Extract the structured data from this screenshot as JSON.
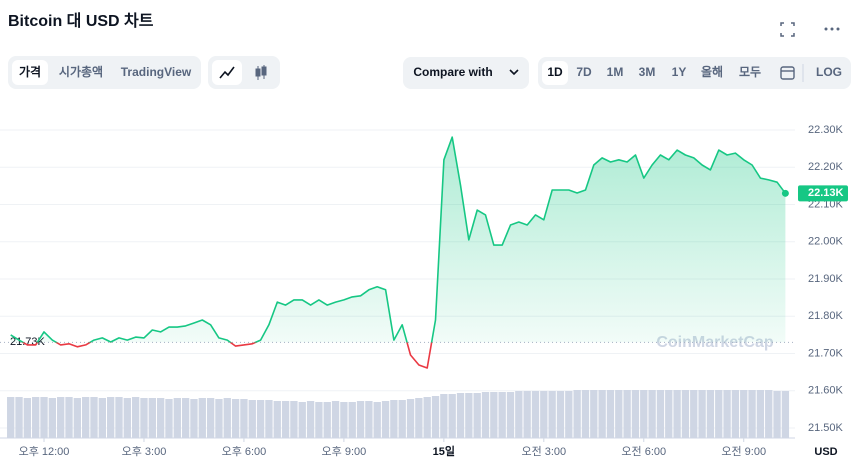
{
  "header": {
    "title": "Bitcoin 대 USD 차트",
    "tabs": [
      "가격",
      "시가총액",
      "TradingView"
    ],
    "compare": "Compare with",
    "ranges": [
      "1D",
      "7D",
      "1M",
      "3M",
      "1Y",
      "올해",
      "모두"
    ],
    "log": "LOG"
  },
  "chart_data": {
    "type": "line",
    "watermark": "CoinMarketCap",
    "y_unit": "USD",
    "categories": [
      null,
      null,
      null,
      null,
      "오후 12:00",
      null,
      null,
      null,
      null,
      null,
      null,
      null,
      null,
      null,
      null,
      null,
      "오후 3:00",
      null,
      null,
      null,
      null,
      null,
      null,
      null,
      null,
      null,
      null,
      null,
      "오후 6:00",
      null,
      null,
      null,
      null,
      null,
      null,
      null,
      null,
      null,
      null,
      null,
      "오후 9:00",
      null,
      null,
      null,
      null,
      null,
      null,
      null,
      null,
      null,
      null,
      null,
      "15일",
      null,
      null,
      null,
      null,
      null,
      null,
      null,
      null,
      null,
      null,
      null,
      "오전 3:00",
      null,
      null,
      null,
      null,
      null,
      null,
      null,
      null,
      null,
      null,
      null,
      "오전 6:00",
      null,
      null,
      null,
      null,
      null,
      null,
      null,
      null,
      null,
      null,
      null,
      "오전 9:00",
      null,
      null,
      null,
      null,
      null
    ],
    "series": [
      {
        "name": "Price",
        "color": "#16c784",
        "below_color": "#ea3943",
        "values": [
          21750,
          21736,
          21723,
          21723,
          21758,
          21736,
          21723,
          21726,
          21718,
          21723,
          21736,
          21742,
          21731,
          21742,
          21736,
          21744,
          21742,
          21763,
          21758,
          21771,
          21771,
          21774,
          21782,
          21790,
          21777,
          21742,
          21736,
          21720,
          21723,
          21726,
          21736,
          21777,
          21838,
          21830,
          21844,
          21844,
          21830,
          21844,
          21830,
          21838,
          21844,
          21852,
          21855,
          21871,
          21879,
          21871,
          21736,
          21777,
          21696,
          21669,
          21661,
          21790,
          22220,
          22281,
          22152,
          22005,
          22085,
          22072,
          21991,
          21991,
          22045,
          22053,
          22045,
          22072,
          22059,
          22139,
          22139,
          22139,
          22131,
          22139,
          22206,
          22225,
          22214,
          22220,
          22214,
          22233,
          22171,
          22206,
          22233,
          22220,
          22246,
          22233,
          22225,
          22206,
          22193,
          22246,
          22233,
          22238,
          22220,
          22206,
          22171,
          22166,
          22160,
          22130
        ]
      }
    ],
    "volume": {
      "color": "#cfd6e4",
      "values": [
        41,
        41,
        40,
        41,
        41,
        40,
        41,
        41,
        40,
        41,
        41,
        40,
        41,
        41,
        40,
        41,
        40,
        40,
        40,
        39,
        40,
        40,
        39,
        40,
        40,
        39,
        40,
        39,
        39,
        38,
        38,
        38,
        37,
        37,
        37,
        36,
        37,
        36,
        36,
        37,
        36,
        36,
        37,
        37,
        36,
        37,
        38,
        38,
        39,
        40,
        41,
        42,
        44,
        44,
        45,
        45,
        45,
        46,
        46,
        46,
        46,
        47,
        47,
        47,
        47,
        47,
        47,
        47,
        48,
        48,
        48,
        48,
        48,
        48,
        48,
        48,
        48,
        48,
        48,
        48,
        48,
        48,
        48,
        48,
        48,
        48,
        48,
        48,
        48,
        48,
        48,
        48,
        47,
        47
      ]
    },
    "reference": {
      "value": 21730,
      "label": "21.73K"
    },
    "last_price": {
      "value": 22130,
      "label": "22.13K"
    },
    "ylim": [
      21500,
      22300
    ],
    "yticks": [
      {
        "value": 21500,
        "label": "21.50K"
      },
      {
        "value": 21600,
        "label": "21.60K"
      },
      {
        "value": 21700,
        "label": "21.70K"
      },
      {
        "value": 21800,
        "label": "21.80K"
      },
      {
        "value": 21900,
        "label": "21.90K"
      },
      {
        "value": 22000,
        "label": "22.00K"
      },
      {
        "value": 22100,
        "label": "22.10K"
      },
      {
        "value": 22200,
        "label": "22.20K"
      },
      {
        "value": 22300,
        "label": "22.30K"
      }
    ],
    "grid": true
  }
}
